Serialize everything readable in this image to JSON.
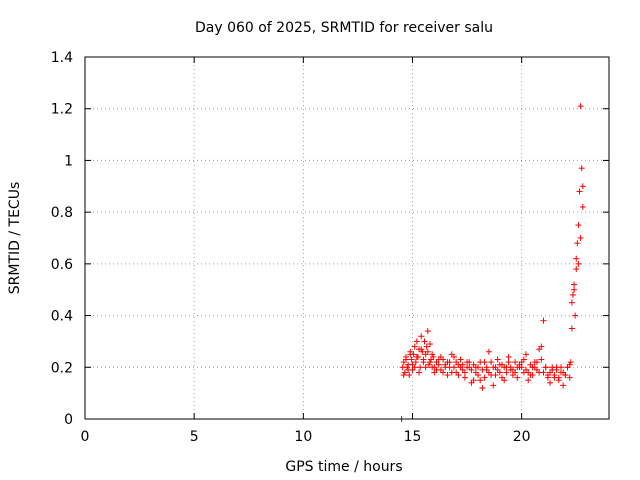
{
  "chart_data": {
    "type": "scatter",
    "title": "Day 060 of 2025, SRMTID for receiver salu",
    "xlabel": "GPS time / hours",
    "ylabel": "SRMTID / TECUs",
    "xlim": [
      0,
      24
    ],
    "ylim": [
      0,
      1.4
    ],
    "xticks": [
      0,
      5,
      10,
      15,
      20
    ],
    "xtick_labels": [
      "0",
      "5",
      "10",
      "15",
      "20"
    ],
    "yticks": [
      0,
      0.2,
      0.4,
      0.6,
      0.8,
      1.0,
      1.2,
      1.4
    ],
    "ytick_labels": [
      "0",
      "0.2",
      "0.4",
      "0.6",
      "0.8",
      "1",
      "1.2",
      "1.4"
    ],
    "grid": true,
    "series": [
      {
        "name": "SRMTID",
        "marker": "plus",
        "color": "#ff0000",
        "x": [
          14.5,
          14.55,
          14.6,
          14.65,
          14.7,
          14.75,
          14.8,
          14.85,
          14.9,
          14.95,
          15.0,
          15.05,
          15.1,
          15.15,
          15.2,
          15.25,
          15.3,
          15.35,
          15.4,
          15.45,
          15.5,
          15.55,
          15.6,
          15.65,
          15.7,
          15.75,
          15.8,
          15.85,
          15.9,
          15.95,
          16.0,
          16.1,
          16.2,
          16.3,
          16.4,
          16.5,
          16.6,
          16.7,
          16.8,
          16.9,
          17.0,
          17.1,
          17.2,
          17.3,
          17.4,
          17.5,
          17.6,
          17.7,
          17.8,
          17.9,
          18.0,
          18.1,
          18.2,
          18.3,
          18.4,
          18.5,
          18.6,
          18.7,
          18.8,
          18.9,
          19.0,
          19.1,
          19.2,
          19.3,
          19.4,
          19.5,
          19.6,
          19.7,
          19.8,
          19.9,
          20.0,
          20.1,
          20.2,
          20.3,
          20.4,
          20.5,
          20.6,
          20.7,
          20.8,
          20.9,
          21.0,
          21.1,
          21.2,
          21.3,
          21.4,
          21.5,
          21.6,
          21.7,
          21.8,
          21.9,
          22.0,
          22.1,
          22.2,
          22.25,
          22.3,
          22.35,
          22.4,
          22.45,
          22.5,
          22.55,
          22.6,
          22.65,
          22.7,
          22.75,
          22.8
        ],
        "y": [
          0.0,
          0.2,
          0.22,
          0.18,
          0.24,
          0.2,
          0.21,
          0.17,
          0.26,
          0.23,
          0.19,
          0.25,
          0.28,
          0.22,
          0.3,
          0.24,
          0.27,
          0.2,
          0.32,
          0.26,
          0.22,
          0.3,
          0.25,
          0.28,
          0.34,
          0.21,
          0.29,
          0.23,
          0.2,
          0.24,
          0.18,
          0.22,
          0.21,
          0.19,
          0.23,
          0.2,
          0.17,
          0.22,
          0.25,
          0.2,
          0.18,
          0.21,
          0.23,
          0.19,
          0.16,
          0.22,
          0.2,
          0.14,
          0.21,
          0.18,
          0.2,
          0.15,
          0.12,
          0.22,
          0.19,
          0.26,
          0.17,
          0.13,
          0.2,
          0.23,
          0.18,
          0.21,
          0.15,
          0.2,
          0.24,
          0.19,
          0.17,
          0.22,
          0.16,
          0.2,
          0.22,
          0.18,
          0.25,
          0.15,
          0.17,
          0.2,
          0.22,
          0.19,
          0.18,
          0.28,
          0.38,
          0.2,
          0.17,
          0.14,
          0.19,
          0.16,
          0.2,
          0.15,
          0.18,
          0.13,
          0.17,
          0.2,
          0.16,
          0.22,
          0.35,
          0.48,
          0.52,
          0.4,
          0.62,
          0.68,
          0.75,
          0.88,
          1.21,
          0.97,
          0.9
        ],
        "x_cloud": [
          14.6,
          14.7,
          14.8,
          14.9,
          15.0,
          15.1,
          15.2,
          15.3,
          15.4,
          15.5,
          15.6,
          15.7,
          15.8,
          15.9,
          16.0,
          16.1,
          16.2,
          16.3,
          16.4,
          16.5,
          16.6,
          16.7,
          16.8,
          16.9,
          17.0,
          17.1,
          17.2,
          17.3,
          17.4,
          17.5,
          17.6,
          17.7,
          17.8,
          17.9,
          18.0,
          18.1,
          18.2,
          18.3,
          18.4,
          18.5,
          18.6,
          18.7,
          18.8,
          18.9,
          19.0,
          19.1,
          19.2,
          19.3,
          19.4,
          19.5,
          19.6,
          19.7,
          19.8,
          19.9,
          20.0,
          20.1,
          20.2,
          20.3,
          20.4,
          20.5,
          20.6,
          20.7,
          20.8,
          20.9,
          21.0,
          21.1,
          21.2,
          21.3,
          21.4,
          21.5,
          21.6,
          21.7,
          21.8,
          21.9,
          22.0,
          22.1,
          22.2,
          22.3,
          22.4,
          22.5,
          22.6,
          22.7,
          22.8
        ],
        "y_cloud": [
          0.17,
          0.23,
          0.19,
          0.25,
          0.21,
          0.2,
          0.24,
          0.18,
          0.27,
          0.23,
          0.2,
          0.26,
          0.22,
          0.25,
          0.2,
          0.19,
          0.23,
          0.24,
          0.18,
          0.21,
          0.22,
          0.2,
          0.18,
          0.24,
          0.22,
          0.17,
          0.2,
          0.21,
          0.18,
          0.2,
          0.22,
          0.19,
          0.15,
          0.2,
          0.17,
          0.22,
          0.19,
          0.16,
          0.2,
          0.18,
          0.22,
          0.2,
          0.17,
          0.19,
          0.21,
          0.16,
          0.2,
          0.18,
          0.22,
          0.2,
          0.19,
          0.18,
          0.2,
          0.21,
          0.2,
          0.23,
          0.19,
          0.18,
          0.21,
          0.17,
          0.2,
          0.22,
          0.27,
          0.23,
          0.18,
          0.2,
          0.16,
          0.18,
          0.2,
          0.17,
          0.19,
          0.16,
          0.2,
          0.18,
          0.17,
          0.2,
          0.21,
          0.45,
          0.5,
          0.58,
          0.6,
          0.7,
          0.82
        ]
      }
    ]
  }
}
